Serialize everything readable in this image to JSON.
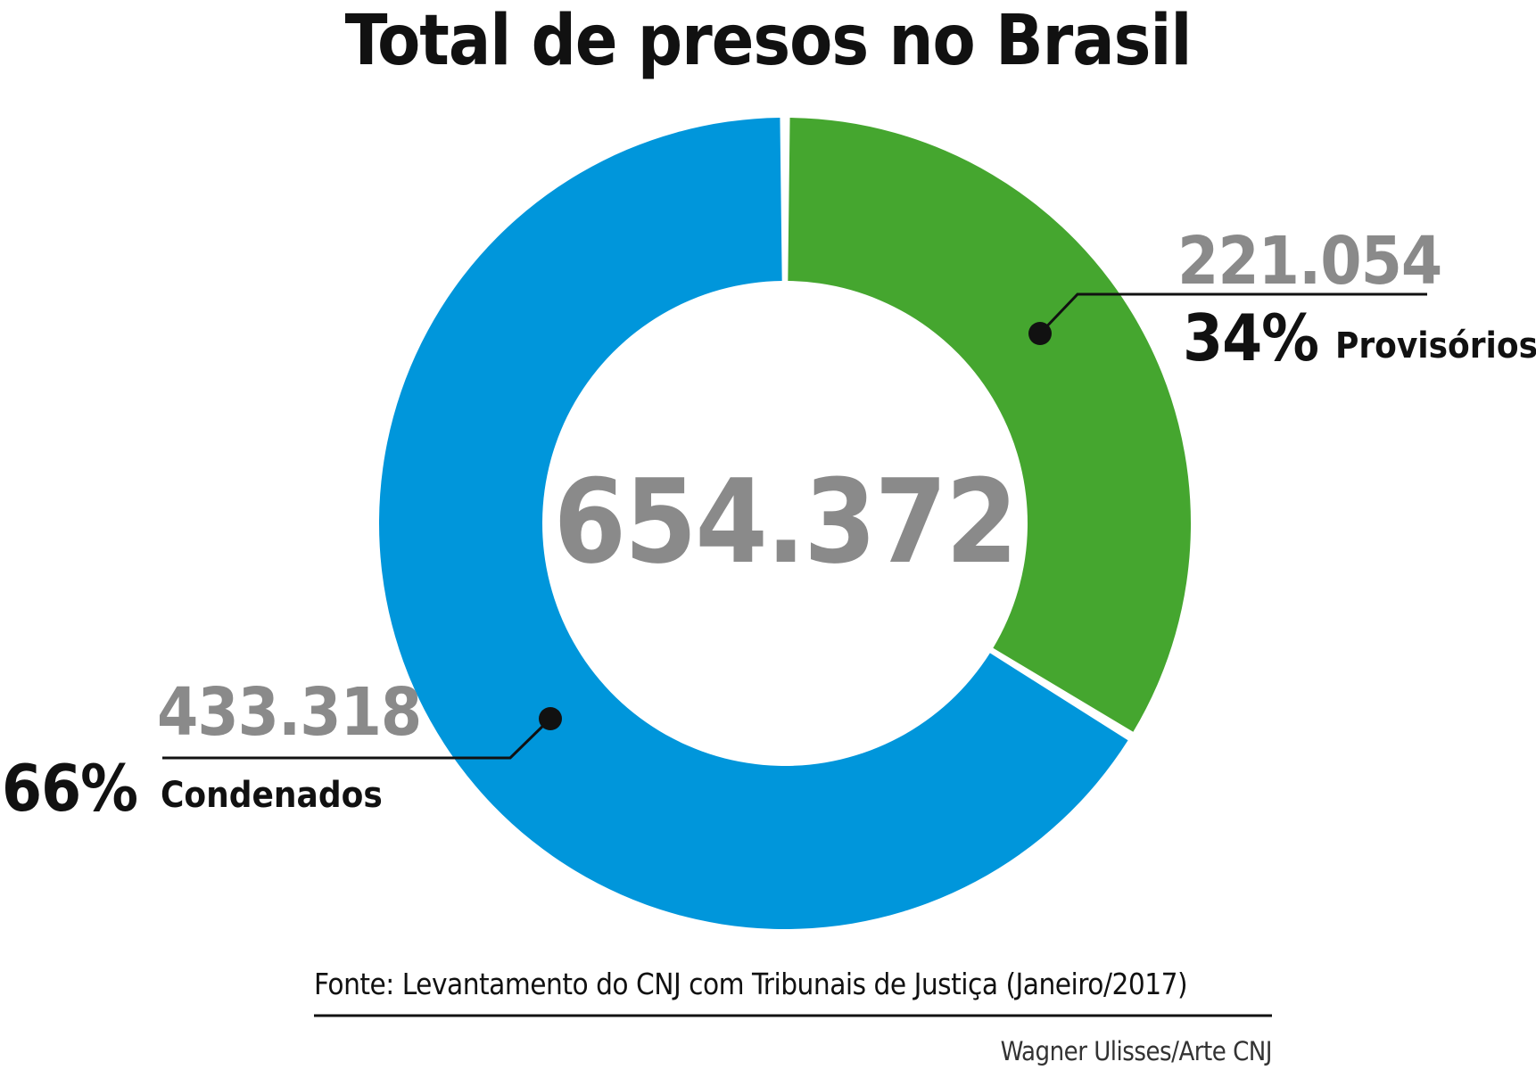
{
  "chart_data": {
    "type": "pie",
    "title": "Total de presos no Brasil",
    "total_label": "654.372",
    "slices": [
      {
        "name": "Provisórios",
        "value": 221054,
        "value_label": "221.054",
        "percent": 34,
        "percent_label": "34%",
        "color": "#45a62f"
      },
      {
        "name": "Condenados",
        "value": 433318,
        "value_label": "433.318",
        "percent": 66,
        "percent_label": "66%",
        "color": "#0096db"
      }
    ],
    "source": "Fonte: Levantamento do CNJ com Tribunais de Justiça (Janeiro/2017)",
    "credit": "Wagner Ulisses/Arte CNJ"
  }
}
